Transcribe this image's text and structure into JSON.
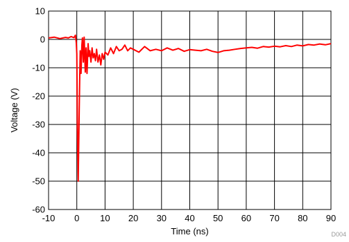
{
  "chart_data": {
    "type": "line",
    "title": "",
    "xlabel": "Time (ns)",
    "ylabel": "Voltage (V)",
    "xlim": [
      -10,
      90
    ],
    "ylim": [
      -60,
      10
    ],
    "x_ticks": [
      "-10",
      "0",
      "10",
      "20",
      "30",
      "40",
      "50",
      "60",
      "70",
      "80",
      "90"
    ],
    "y_ticks": [
      "10",
      "0",
      "-10",
      "-20",
      "-30",
      "-40",
      "-50",
      "-60"
    ],
    "grid": true,
    "legend": "none",
    "figure_code": "D004",
    "series": [
      {
        "color": "#ff0000",
        "x": [
          -10,
          -8,
          -6,
          -4,
          -3,
          -2,
          -1,
          -0.5,
          -0.2,
          0,
          0.2,
          0.5,
          0.8,
          1.0,
          1.2,
          1.5,
          1.8,
          2.0,
          2.3,
          2.6,
          3.0,
          3.3,
          3.6,
          4.0,
          4.3,
          4.6,
          5.0,
          5.4,
          5.8,
          6.2,
          6.6,
          7.0,
          7.5,
          8.0,
          8.5,
          9.0,
          9.5,
          10,
          11,
          12,
          13,
          14,
          15,
          16,
          17,
          18,
          19,
          20,
          22,
          24,
          26,
          28,
          30,
          32,
          34,
          36,
          38,
          40,
          42,
          44,
          46,
          48,
          50,
          52,
          54,
          56,
          58,
          60,
          62,
          64,
          66,
          68,
          70,
          72,
          74,
          76,
          78,
          80,
          82,
          84,
          86,
          88,
          90
        ],
        "y": [
          0.5,
          0.8,
          0.3,
          0.7,
          0.5,
          1.0,
          0.6,
          1.5,
          -1.0,
          -5.0,
          -30.0,
          -50.0,
          -28.0,
          -15.0,
          -4.0,
          -12.0,
          -2.0,
          0.5,
          -8.0,
          0.8,
          -11.5,
          -3.0,
          -12.0,
          -1.5,
          -6.0,
          -4.0,
          -8.0,
          -3.0,
          -6.5,
          -5.0,
          -7.5,
          -3.5,
          -8.0,
          -5.5,
          -9.0,
          -5.0,
          -7.0,
          -4.5,
          -5.5,
          -3.0,
          -5.0,
          -2.5,
          -4.0,
          -3.5,
          -2.0,
          -4.0,
          -3.0,
          -3.5,
          -4.5,
          -2.5,
          -4.0,
          -3.5,
          -4.0,
          -3.0,
          -3.8,
          -3.2,
          -4.2,
          -3.6,
          -3.8,
          -4.0,
          -3.5,
          -4.2,
          -4.6,
          -4.0,
          -3.8,
          -3.5,
          -3.2,
          -3.0,
          -2.8,
          -3.1,
          -2.5,
          -2.7,
          -2.4,
          -2.6,
          -2.2,
          -2.5,
          -2.0,
          -2.3,
          -1.8,
          -2.0,
          -1.6,
          -1.9,
          -1.5
        ]
      }
    ]
  }
}
